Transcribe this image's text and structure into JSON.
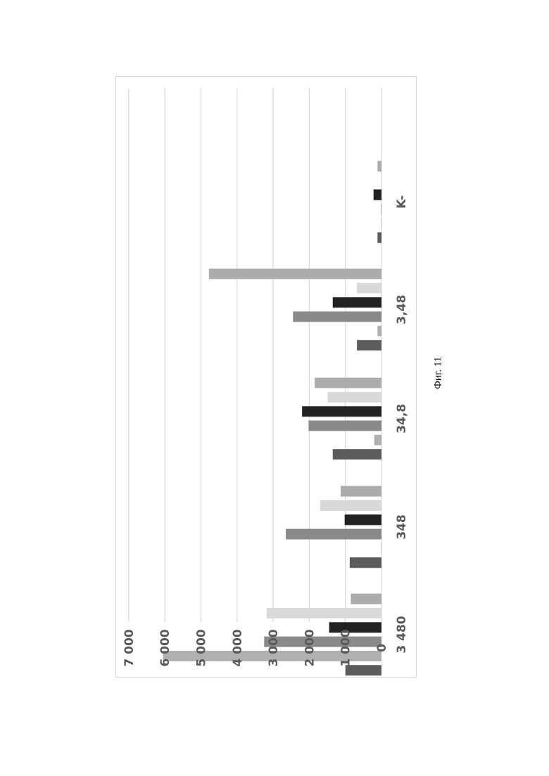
{
  "caption": "Фиг. 11",
  "colors": [
    "#5c5c5c",
    "#b0b0b0",
    "#8a8a8a",
    "#222222",
    "#d9d9d9",
    "#acacac"
  ],
  "chart_data": {
    "type": "bar",
    "orientation": "vertical bars, page rotated 90° counter-clockwise",
    "categories": [
      "3 480",
      "348",
      "34,8",
      "3,48",
      "K-"
    ],
    "series": [
      {
        "values": [
          1000,
          880,
          1350,
          680,
          110
        ]
      },
      {
        "values": [
          6050,
          10,
          200,
          110,
          10
        ]
      },
      {
        "values": [
          3250,
          2650,
          2020,
          2450,
          10
        ]
      },
      {
        "values": [
          1450,
          1020,
          2200,
          1350,
          220
        ]
      },
      {
        "values": [
          3180,
          1700,
          1490,
          680,
          10
        ]
      },
      {
        "values": [
          850,
          1130,
          1850,
          4780,
          110
        ]
      }
    ],
    "y_ticks": [
      "0",
      "1 000",
      "2 000",
      "3 000",
      "4 000",
      "5 000",
      "6 000",
      "7 000"
    ],
    "ylim": [
      0,
      7000
    ],
    "grid": true,
    "legend": "none"
  }
}
